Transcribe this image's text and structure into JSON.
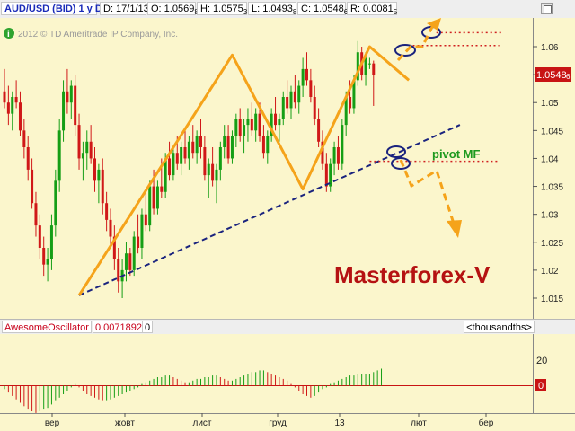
{
  "toolbar": {
    "symbol": "AUD/USD (BID) 1 y D",
    "date": "D: 17/1/13",
    "open": "O: 1.0569",
    "open_sub": "8",
    "high": "H: 1.0575",
    "high_sub": "3",
    "low": "L: 1.0493",
    "low_sub": "8",
    "close": "C: 1.0548",
    "close_sub": "6",
    "range": "R: 0.0081",
    "range_sub": "5"
  },
  "copyright": "2012 © TD Ameritrade IP Company, Inc.",
  "annotations": {
    "pivot": "pivot MF",
    "watermark": "Masterforex-V"
  },
  "price_badge": {
    "main": "1.0548",
    "sub": "6"
  },
  "oscillator": {
    "name": "AwesomeOscillator",
    "value": "0.0071892",
    "extra": "0",
    "units": "<thousandths>",
    "ticks": [
      "20",
      "0"
    ]
  },
  "chart_data": {
    "type": "candlestick",
    "symbol": "AUD/USD",
    "ylim": [
      1.012,
      1.066
    ],
    "yticks": [
      1.015,
      1.02,
      1.025,
      1.03,
      1.035,
      1.04,
      1.045,
      1.05,
      1.055,
      1.06
    ],
    "ytick_labels": [
      "1.015",
      "1.02",
      "1.025",
      "1.03",
      "1.035",
      "1.04",
      "1.045",
      "1.05",
      "1.055",
      "1.06"
    ],
    "xticks": [
      "вер",
      "жовт",
      "лист",
      "груд",
      "13",
      "лют",
      "бер"
    ],
    "candles": [
      [
        1.052,
        1.056,
        1.049,
        1.05
      ],
      [
        1.05,
        1.053,
        1.046,
        1.048
      ],
      [
        1.048,
        1.052,
        1.045,
        1.051
      ],
      [
        1.051,
        1.054,
        1.049,
        1.05
      ],
      [
        1.05,
        1.052,
        1.044,
        1.045
      ],
      [
        1.045,
        1.047,
        1.04,
        1.042
      ],
      [
        1.042,
        1.044,
        1.036,
        1.038
      ],
      [
        1.038,
        1.04,
        1.031,
        1.032
      ],
      [
        1.032,
        1.034,
        1.026,
        1.028
      ],
      [
        1.028,
        1.03,
        1.022,
        1.024
      ],
      [
        1.024,
        1.026,
        1.019,
        1.021
      ],
      [
        1.021,
        1.024,
        1.018,
        1.022
      ],
      [
        1.022,
        1.03,
        1.02,
        1.028
      ],
      [
        1.028,
        1.038,
        1.026,
        1.036
      ],
      [
        1.036,
        1.047,
        1.034,
        1.045
      ],
      [
        1.045,
        1.054,
        1.043,
        1.052
      ],
      [
        1.052,
        1.056,
        1.048,
        1.05
      ],
      [
        1.05,
        1.054,
        1.047,
        1.053
      ],
      [
        1.053,
        1.055,
        1.044,
        1.046
      ],
      [
        1.046,
        1.048,
        1.038,
        1.04
      ],
      [
        1.04,
        1.043,
        1.036,
        1.041
      ],
      [
        1.041,
        1.045,
        1.038,
        1.043
      ],
      [
        1.043,
        1.046,
        1.039,
        1.04
      ],
      [
        1.04,
        1.042,
        1.034,
        1.036
      ],
      [
        1.036,
        1.039,
        1.032,
        1.038
      ],
      [
        1.038,
        1.04,
        1.03,
        1.032
      ],
      [
        1.032,
        1.034,
        1.027,
        1.029
      ],
      [
        1.029,
        1.031,
        1.024,
        1.026
      ],
      [
        1.026,
        1.028,
        1.02,
        1.022
      ],
      [
        1.022,
        1.024,
        1.016,
        1.018
      ],
      [
        1.018,
        1.022,
        1.015,
        1.02
      ],
      [
        1.02,
        1.025,
        1.018,
        1.023
      ],
      [
        1.023,
        1.024,
        1.019,
        1.02
      ],
      [
        1.02,
        1.027,
        1.019,
        1.026
      ],
      [
        1.026,
        1.03,
        1.023,
        1.024
      ],
      [
        1.024,
        1.031,
        1.022,
        1.03
      ],
      [
        1.03,
        1.034,
        1.027,
        1.028
      ],
      [
        1.028,
        1.036,
        1.027,
        1.035
      ],
      [
        1.035,
        1.038,
        1.03,
        1.031
      ],
      [
        1.031,
        1.036,
        1.03,
        1.035
      ],
      [
        1.035,
        1.04,
        1.033,
        1.034
      ],
      [
        1.034,
        1.041,
        1.033,
        1.04
      ],
      [
        1.04,
        1.043,
        1.036,
        1.037
      ],
      [
        1.037,
        1.042,
        1.036,
        1.041
      ],
      [
        1.041,
        1.044,
        1.038,
        1.039
      ],
      [
        1.039,
        1.043,
        1.037,
        1.042
      ],
      [
        1.042,
        1.045,
        1.039,
        1.04
      ],
      [
        1.04,
        1.044,
        1.038,
        1.043
      ],
      [
        1.043,
        1.046,
        1.04,
        1.041
      ],
      [
        1.041,
        1.045,
        1.039,
        1.044
      ],
      [
        1.044,
        1.047,
        1.04,
        1.042
      ],
      [
        1.042,
        1.044,
        1.036,
        1.037
      ],
      [
        1.037,
        1.04,
        1.033,
        1.039
      ],
      [
        1.039,
        1.042,
        1.035,
        1.036
      ],
      [
        1.036,
        1.039,
        1.032,
        1.038
      ],
      [
        1.038,
        1.043,
        1.036,
        1.042
      ],
      [
        1.042,
        1.046,
        1.04,
        1.044
      ],
      [
        1.044,
        1.046,
        1.039,
        1.04
      ],
      [
        1.04,
        1.045,
        1.039,
        1.044
      ],
      [
        1.044,
        1.048,
        1.042,
        1.047
      ],
      [
        1.047,
        1.049,
        1.043,
        1.044
      ],
      [
        1.044,
        1.047,
        1.041,
        1.046
      ],
      [
        1.046,
        1.049,
        1.043,
        1.047
      ],
      [
        1.047,
        1.05,
        1.044,
        1.045
      ],
      [
        1.045,
        1.049,
        1.043,
        1.048
      ],
      [
        1.048,
        1.05,
        1.043,
        1.044
      ],
      [
        1.044,
        1.046,
        1.04,
        1.041
      ],
      [
        1.041,
        1.045,
        1.039,
        1.044
      ],
      [
        1.044,
        1.049,
        1.043,
        1.048
      ],
      [
        1.048,
        1.051,
        1.045,
        1.046
      ],
      [
        1.046,
        1.048,
        1.043,
        1.047
      ],
      [
        1.047,
        1.052,
        1.046,
        1.051
      ],
      [
        1.051,
        1.054,
        1.048,
        1.049
      ],
      [
        1.049,
        1.053,
        1.047,
        1.052
      ],
      [
        1.052,
        1.055,
        1.049,
        1.05
      ],
      [
        1.05,
        1.054,
        1.048,
        1.053
      ],
      [
        1.053,
        1.058,
        1.051,
        1.056
      ],
      [
        1.056,
        1.059,
        1.053,
        1.054
      ],
      [
        1.054,
        1.056,
        1.05,
        1.051
      ],
      [
        1.051,
        1.053,
        1.046,
        1.047
      ],
      [
        1.047,
        1.049,
        1.042,
        1.043
      ],
      [
        1.043,
        1.045,
        1.038,
        1.039
      ],
      [
        1.039,
        1.041,
        1.034,
        1.035
      ],
      [
        1.035,
        1.04,
        1.034,
        1.039
      ],
      [
        1.039,
        1.043,
        1.037,
        1.042
      ],
      [
        1.042,
        1.044,
        1.038,
        1.039
      ],
      [
        1.039,
        1.047,
        1.038,
        1.046
      ],
      [
        1.046,
        1.052,
        1.044,
        1.051
      ],
      [
        1.051,
        1.054,
        1.048,
        1.049
      ],
      [
        1.049,
        1.055,
        1.048,
        1.054
      ],
      [
        1.054,
        1.061,
        1.053,
        1.059
      ],
      [
        1.059,
        1.06,
        1.054,
        1.055
      ],
      [
        1.055,
        1.059,
        1.053,
        1.058
      ],
      [
        1.057,
        1.058,
        1.056,
        1.057
      ],
      [
        1.057,
        1.0575,
        1.0494,
        1.0549
      ]
    ],
    "lines": [
      {
        "kind": "trendline-dashed",
        "color": "#1a237e",
        "x": [
          19,
          116
        ],
        "y": [
          1.0155,
          1.046
        ]
      },
      {
        "kind": "zigzag",
        "color": "#f5a31a",
        "x": [
          19,
          58,
          76,
          93,
          103
        ],
        "y": [
          1.0155,
          1.0585,
          1.0345,
          1.06,
          1.054
        ]
      },
      {
        "kind": "resistance-dotted",
        "color": "#d02020",
        "x": [
          110,
          127
        ],
        "y": [
          1.0625,
          1.0625
        ]
      },
      {
        "kind": "resistance-dotted",
        "color": "#d02020",
        "x": [
          104,
          126
        ],
        "y": [
          1.0602,
          1.0602
        ]
      },
      {
        "kind": "pivot-dotted",
        "color": "#d02020",
        "x": [
          93,
          126
        ],
        "y": [
          1.0395,
          1.0395
        ]
      }
    ],
    "oscillator_bars": [
      -2,
      -4,
      -6,
      -8,
      -10,
      -12,
      -14,
      -15,
      -16,
      -15,
      -14,
      -13,
      -11,
      -9,
      -7,
      -5,
      -3,
      -1,
      1,
      -1,
      -3,
      -5,
      -6,
      -7,
      -8,
      -9,
      -9,
      -8,
      -7,
      -6,
      -5,
      -4,
      -3,
      -2,
      -1,
      1,
      2,
      3,
      4,
      5,
      5,
      6,
      6,
      5,
      4,
      3,
      2,
      2,
      3,
      4,
      4,
      5,
      5,
      6,
      6,
      5,
      4,
      3,
      3,
      4,
      5,
      6,
      7,
      8,
      8,
      9,
      9,
      8,
      7,
      6,
      5,
      4,
      3,
      1,
      -1,
      -3,
      -5,
      -6,
      -7,
      -6,
      -4,
      -2,
      -1,
      1,
      2,
      3,
      4,
      5,
      6,
      6,
      7,
      7,
      7,
      7,
      8,
      9,
      10
    ]
  }
}
